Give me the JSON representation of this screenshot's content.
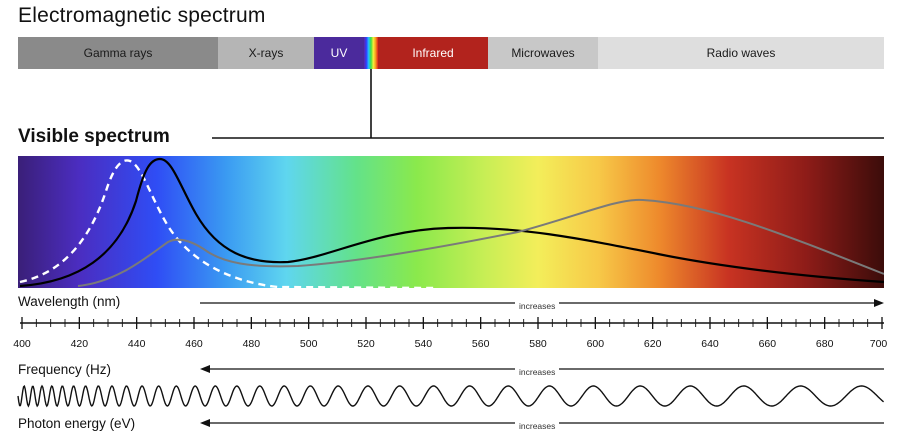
{
  "title": "Electromagnetic spectrum",
  "em_bands": [
    {
      "label": "Gamma rays",
      "color": "#8a8a8a",
      "text_color": "#1a1a1a"
    },
    {
      "label": "X-rays",
      "color": "#b5b5b5",
      "text_color": "#1a1a1a"
    },
    {
      "label": "UV",
      "color": "#4b2a9c",
      "text_color": "#ffffff"
    },
    {
      "label": "",
      "color": "rainbow",
      "text_color": "#1a1a1a"
    },
    {
      "label": "Infrared",
      "color": "#b2231d",
      "text_color": "#ffffff"
    },
    {
      "label": "Microwaves",
      "color": "#c8c8c8",
      "text_color": "#1a1a1a"
    },
    {
      "label": "Radio waves",
      "color": "#dedede",
      "text_color": "#1a1a1a"
    }
  ],
  "visible_title": "Visible spectrum",
  "wavelength": {
    "title": "Wavelength (nm)",
    "increases": "increases",
    "ticks": [
      "400",
      "420",
      "440",
      "460",
      "480",
      "500",
      "520",
      "540",
      "560",
      "580",
      "600",
      "620",
      "640",
      "660",
      "680",
      "700"
    ]
  },
  "frequency": {
    "title": "Frequency (Hz)",
    "increases": "increases"
  },
  "photon": {
    "title": "Photon energy (eV)",
    "increases": "increases"
  },
  "curves": {
    "dashed_white": "#ffffff",
    "black": "#000000",
    "gray": "#7a7a7a"
  }
}
